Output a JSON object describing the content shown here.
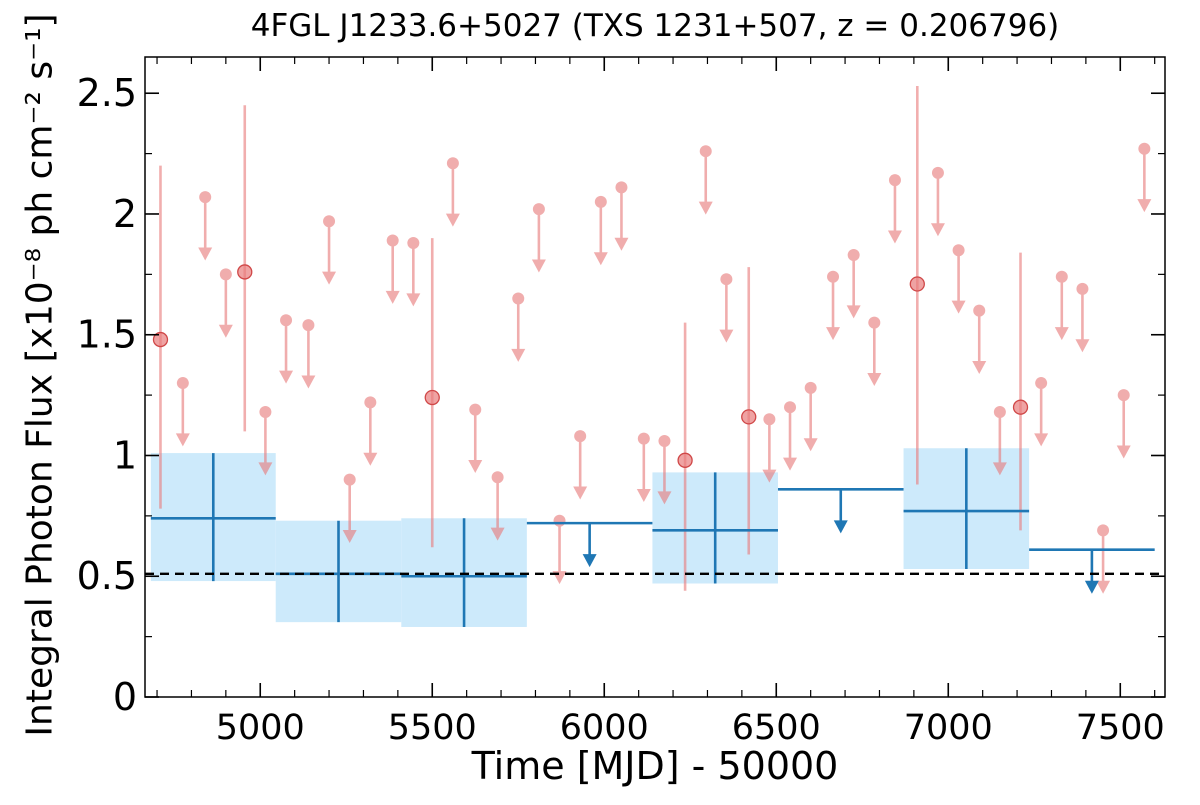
{
  "chart_data": {
    "type": "scatter",
    "title": "4FGL J1233.6+5027 (TXS 1231+507, z = 0.206796)",
    "xlabel": "Time [MJD] - 50000",
    "ylabel": "Integral Photon Flux [x10⁻⁸ ph cm⁻² s⁻¹]",
    "xlim": [
      4665,
      7630
    ],
    "ylim": [
      0,
      2.65
    ],
    "xticks": [
      5000,
      5500,
      6000,
      6500,
      7000,
      7500
    ],
    "xtick_labels": [
      "5000",
      "5500",
      "6000",
      "6500",
      "7000",
      "7500"
    ],
    "yticks": [
      0,
      0.5,
      1,
      1.5,
      2,
      2.5
    ],
    "ytick_labels": [
      "0",
      "0.5",
      "1",
      "1.5",
      "2",
      "2.5"
    ],
    "grid": false,
    "reference_line": {
      "y": 0.51,
      "style": "dashed"
    },
    "colors": {
      "fine_bins": "#e87c7c",
      "coarse_bins": "#1f77b4",
      "band_fill": "#cdeafb",
      "reference": "#000000"
    },
    "series": [
      {
        "kind": "fine-bin detections",
        "points": [
          {
            "x": 4710,
            "y": 1.48,
            "ylo": 0.78,
            "yhi": 2.2
          },
          {
            "x": 4955,
            "y": 1.76,
            "ylo": 1.1,
            "yhi": 2.45
          },
          {
            "x": 5500,
            "y": 1.24,
            "ylo": 0.62,
            "yhi": 1.9
          },
          {
            "x": 6235,
            "y": 0.98,
            "ylo": 0.44,
            "yhi": 1.55
          },
          {
            "x": 6420,
            "y": 1.16,
            "ylo": 0.59,
            "yhi": 1.78
          },
          {
            "x": 6910,
            "y": 1.71,
            "ylo": 0.88,
            "yhi": 2.53
          },
          {
            "x": 7210,
            "y": 1.2,
            "ylo": 0.69,
            "yhi": 1.84
          }
        ]
      },
      {
        "kind": "fine-bin upper limits",
        "points": [
          {
            "x": 4775,
            "y": 1.3
          },
          {
            "x": 4840,
            "y": 2.07
          },
          {
            "x": 4900,
            "y": 1.75
          },
          {
            "x": 5015,
            "y": 1.18
          },
          {
            "x": 5075,
            "y": 1.56
          },
          {
            "x": 5140,
            "y": 1.54
          },
          {
            "x": 5200,
            "y": 1.97
          },
          {
            "x": 5260,
            "y": 0.9
          },
          {
            "x": 5320,
            "y": 1.22
          },
          {
            "x": 5385,
            "y": 1.89
          },
          {
            "x": 5445,
            "y": 1.88
          },
          {
            "x": 5560,
            "y": 2.21
          },
          {
            "x": 5625,
            "y": 1.19
          },
          {
            "x": 5690,
            "y": 0.91
          },
          {
            "x": 5750,
            "y": 1.65
          },
          {
            "x": 5810,
            "y": 2.02
          },
          {
            "x": 5870,
            "y": 0.73
          },
          {
            "x": 5930,
            "y": 1.08
          },
          {
            "x": 5990,
            "y": 2.05
          },
          {
            "x": 6050,
            "y": 2.11
          },
          {
            "x": 6115,
            "y": 1.07
          },
          {
            "x": 6175,
            "y": 1.06
          },
          {
            "x": 6295,
            "y": 2.26
          },
          {
            "x": 6355,
            "y": 1.73
          },
          {
            "x": 6480,
            "y": 1.15
          },
          {
            "x": 6540,
            "y": 1.2
          },
          {
            "x": 6600,
            "y": 1.28
          },
          {
            "x": 6665,
            "y": 1.74
          },
          {
            "x": 6725,
            "y": 1.83
          },
          {
            "x": 6785,
            "y": 1.55
          },
          {
            "x": 6845,
            "y": 2.14
          },
          {
            "x": 6970,
            "y": 2.17
          },
          {
            "x": 7030,
            "y": 1.85
          },
          {
            "x": 7090,
            "y": 1.6
          },
          {
            "x": 7150,
            "y": 1.18
          },
          {
            "x": 7270,
            "y": 1.3
          },
          {
            "x": 7330,
            "y": 1.74
          },
          {
            "x": 7390,
            "y": 1.69
          },
          {
            "x": 7450,
            "y": 0.69
          },
          {
            "x": 7510,
            "y": 1.25
          },
          {
            "x": 7570,
            "y": 2.27
          }
        ]
      },
      {
        "kind": "coarse-bin detections",
        "points": [
          {
            "x0": 4682,
            "x1": 5045,
            "y": 0.74,
            "ylo": 0.48,
            "yhi": 1.01
          },
          {
            "x0": 5045,
            "x1": 5410,
            "y": 0.51,
            "ylo": 0.31,
            "yhi": 0.73
          },
          {
            "x0": 5410,
            "x1": 5775,
            "y": 0.5,
            "ylo": 0.29,
            "yhi": 0.74
          },
          {
            "x0": 6140,
            "x1": 6505,
            "y": 0.69,
            "ylo": 0.47,
            "yhi": 0.93
          },
          {
            "x0": 6870,
            "x1": 7235,
            "y": 0.77,
            "ylo": 0.53,
            "yhi": 1.03
          }
        ]
      },
      {
        "kind": "coarse-bin upper limits",
        "points": [
          {
            "x0": 5775,
            "x1": 6140,
            "y": 0.72
          },
          {
            "x0": 6505,
            "x1": 6870,
            "y": 0.86
          },
          {
            "x0": 7235,
            "x1": 7600,
            "y": 0.61
          }
        ]
      }
    ]
  }
}
